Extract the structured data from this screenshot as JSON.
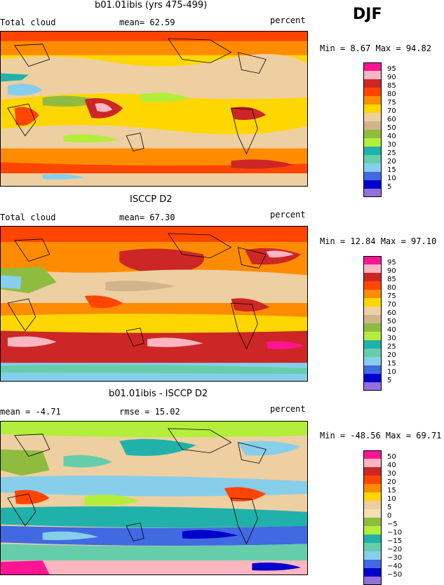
{
  "season": "DJF",
  "panels": [
    {
      "title": "b01.01ibis (yrs 475-499)",
      "left_label": "Total cloud",
      "stat1": "mean=  62.59",
      "stat2": "",
      "units": "percent",
      "minmax": "Min =   8.67 Max =  94.82",
      "legend": {
        "labels": [
          "95",
          "90",
          "85",
          "80",
          "75",
          "70",
          "60",
          "50",
          "40",
          "30",
          "25",
          "20",
          "15",
          "10",
          "5"
        ],
        "colors": [
          "#ff1493",
          "#ffb6c1",
          "#cd2626",
          "#ff4500",
          "#ff8c00",
          "#ffd700",
          "#eecfa1",
          "#d2b48c",
          "#8fbc3f",
          "#b3ee3a",
          "#20b2aa",
          "#66cdaa",
          "#87ceeb",
          "#4169e1",
          "#0000cd",
          "#9370db"
        ]
      }
    },
    {
      "title": "ISCCP D2",
      "left_label": "Total cloud",
      "stat1": "mean=  67.30",
      "stat2": "",
      "units": "percent",
      "minmax": "Min =  12.84 Max =  97.10",
      "legend": {
        "labels": [
          "95",
          "90",
          "85",
          "80",
          "75",
          "70",
          "60",
          "50",
          "40",
          "30",
          "25",
          "20",
          "15",
          "10",
          "5"
        ],
        "colors": [
          "#ff1493",
          "#ffb6c1",
          "#cd2626",
          "#ff4500",
          "#ff8c00",
          "#ffd700",
          "#eecfa1",
          "#d2b48c",
          "#8fbc3f",
          "#b3ee3a",
          "#20b2aa",
          "#66cdaa",
          "#87ceeb",
          "#4169e1",
          "#0000cd",
          "#9370db"
        ]
      }
    },
    {
      "title": "b01.01ibis - ISCCP D2",
      "left_label": "",
      "stat1": "mean =  -4.71",
      "stat2": "rmse =  15.02",
      "units": "percent",
      "minmax": "Min = -48.56 Max =  69.71",
      "legend": {
        "labels": [
          "50",
          "40",
          "30",
          "20",
          "15",
          "10",
          "5",
          "0",
          "−5",
          "−10",
          "−15",
          "−20",
          "−30",
          "−40",
          "−50"
        ],
        "colors": [
          "#ff1493",
          "#ffb6c1",
          "#cd2626",
          "#ff4500",
          "#ff8c00",
          "#ffd700",
          "#eecfa1",
          "#f5deb3",
          "#8fbc3f",
          "#b3ee3a",
          "#20b2aa",
          "#66cdaa",
          "#87ceeb",
          "#4169e1",
          "#0000cd",
          "#9370db"
        ]
      }
    }
  ]
}
